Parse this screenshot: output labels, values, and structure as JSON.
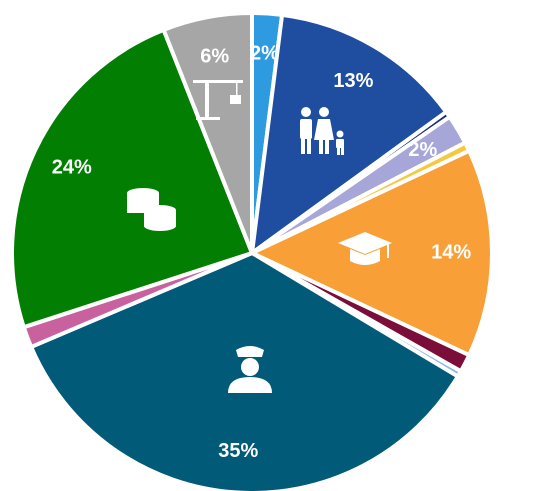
{
  "chart_data": {
    "type": "pie",
    "values": [
      2,
      13,
      0.4,
      2,
      0.6,
      14,
      1.2,
      0.4,
      35,
      1.4,
      24,
      6
    ],
    "value_labels": [
      "2%",
      "13%",
      null,
      "2%",
      null,
      "14%",
      null,
      null,
      "35%",
      null,
      "24%",
      "6%"
    ],
    "colors": [
      "#2e9be0",
      "#1f4ea0",
      "#1a2e6e",
      "#a6a6d8",
      "#f5c842",
      "#f8a037",
      "#7a0d3a",
      "#8ab8e8",
      "#005a78",
      "#c9619f",
      "#027f02",
      "#a6a6a6"
    ]
  }
}
